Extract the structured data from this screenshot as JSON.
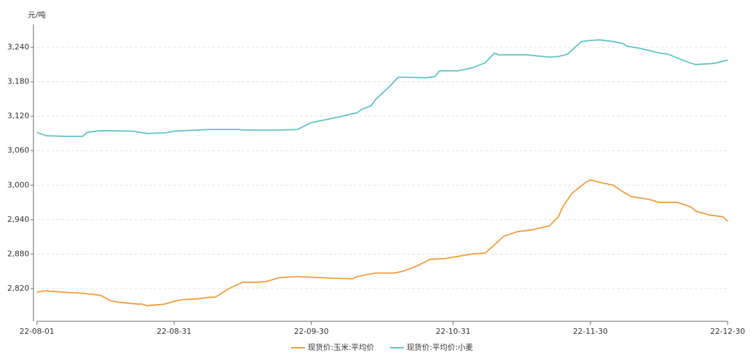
{
  "chart_data": {
    "type": "line",
    "y_unit": "元/吨",
    "xlim": [
      "22-08-01",
      "22-12-30"
    ],
    "xticks": [
      "22-08-01",
      "22-08-31",
      "22-09-30",
      "22-10-31",
      "22-11-30",
      "22-12-30"
    ],
    "ylim": [
      2763,
      3280
    ],
    "yticks": [
      {
        "value": 2820,
        "label": "2,820"
      },
      {
        "value": 2880,
        "label": "2,880"
      },
      {
        "value": 2940,
        "label": "2,940"
      },
      {
        "value": 3000,
        "label": "3,000"
      },
      {
        "value": 3060,
        "label": "3,060"
      },
      {
        "value": 3120,
        "label": "3,120"
      },
      {
        "value": 3180,
        "label": "3,180"
      },
      {
        "value": 3240,
        "label": "3,240"
      }
    ],
    "grid": true,
    "legend": "bottom",
    "series": [
      {
        "name": "现货价:玉米:平均价",
        "color": "#f39a36",
        "x": [
          "22-08-01",
          "22-08-03",
          "22-08-08",
          "22-08-11",
          "22-08-15",
          "22-08-17",
          "22-08-19",
          "22-08-23",
          "22-08-24",
          "22-08-25",
          "22-08-29",
          "22-08-31",
          "22-09-02",
          "22-09-05",
          "22-09-08",
          "22-09-09",
          "22-09-12",
          "22-09-15",
          "22-09-18",
          "22-09-20",
          "22-09-23",
          "22-09-27",
          "22-10-05",
          "22-10-09",
          "22-10-10",
          "22-10-14",
          "22-10-18",
          "22-10-20",
          "22-10-23",
          "22-10-26",
          "22-10-29",
          "22-11-01",
          "22-11-04",
          "22-11-07",
          "22-11-09",
          "22-11-11",
          "22-11-14",
          "22-11-17",
          "22-11-21",
          "22-11-23",
          "22-11-24",
          "22-11-26",
          "22-11-29",
          "22-11-30",
          "22-12-02",
          "22-12-05",
          "22-12-07",
          "22-12-09",
          "22-12-13",
          "22-12-15",
          "22-12-19",
          "22-12-22",
          "22-12-23",
          "22-12-26",
          "22-12-29",
          "22-12-30"
        ],
        "values": [
          2814,
          2816,
          2813,
          2812,
          2808,
          2799,
          2796,
          2793,
          2793,
          2790,
          2793,
          2798,
          2801,
          2802,
          2805,
          2805,
          2820,
          2831,
          2831,
          2832,
          2839,
          2841,
          2838,
          2837,
          2841,
          2847,
          2847,
          2850,
          2859,
          2871,
          2872,
          2876,
          2880,
          2882,
          2896,
          2911,
          2919,
          2922,
          2929,
          2945,
          2963,
          2986,
          3005,
          3009,
          3005,
          3000,
          2989,
          2980,
          2975,
          2970,
          2970,
          2962,
          2955,
          2948,
          2945,
          2937
        ]
      },
      {
        "name": "现货价:平均价:小麦",
        "color": "#5bc3c5",
        "x": [
          "22-08-01",
          "22-08-03",
          "22-08-08",
          "22-08-11",
          "22-08-12",
          "22-08-15",
          "22-08-22",
          "22-08-25",
          "22-08-29",
          "22-08-31",
          "22-09-05",
          "22-09-08",
          "22-09-14",
          "22-09-15",
          "22-09-18",
          "22-09-23",
          "22-09-27",
          "22-09-30",
          "22-10-05",
          "22-10-10",
          "22-10-11",
          "22-10-13",
          "22-10-14",
          "22-10-17",
          "22-10-19",
          "22-10-20",
          "22-10-25",
          "22-10-27",
          "22-10-28",
          "22-11-01",
          "22-11-04",
          "22-11-07",
          "22-11-09",
          "22-11-10",
          "22-11-16",
          "22-11-21",
          "22-11-23",
          "22-11-25",
          "22-11-28",
          "22-11-30",
          "22-12-02",
          "22-12-05",
          "22-12-07",
          "22-12-08",
          "22-12-11",
          "22-12-15",
          "22-12-17",
          "22-12-21",
          "22-12-23",
          "22-12-27",
          "22-12-30"
        ],
        "values": [
          3092,
          3086,
          3085,
          3085,
          3092,
          3095,
          3094,
          3090,
          3091,
          3094,
          3096,
          3097,
          3097,
          3096,
          3096,
          3096,
          3097,
          3109,
          3117,
          3126,
          3132,
          3138,
          3149,
          3171,
          3188,
          3188,
          3187,
          3189,
          3199,
          3199,
          3204,
          3213,
          3230,
          3227,
          3227,
          3223,
          3224,
          3228,
          3250,
          3252,
          3253,
          3250,
          3247,
          3242,
          3238,
          3230,
          3228,
          3215,
          3210,
          3212,
          3218
        ]
      }
    ]
  }
}
